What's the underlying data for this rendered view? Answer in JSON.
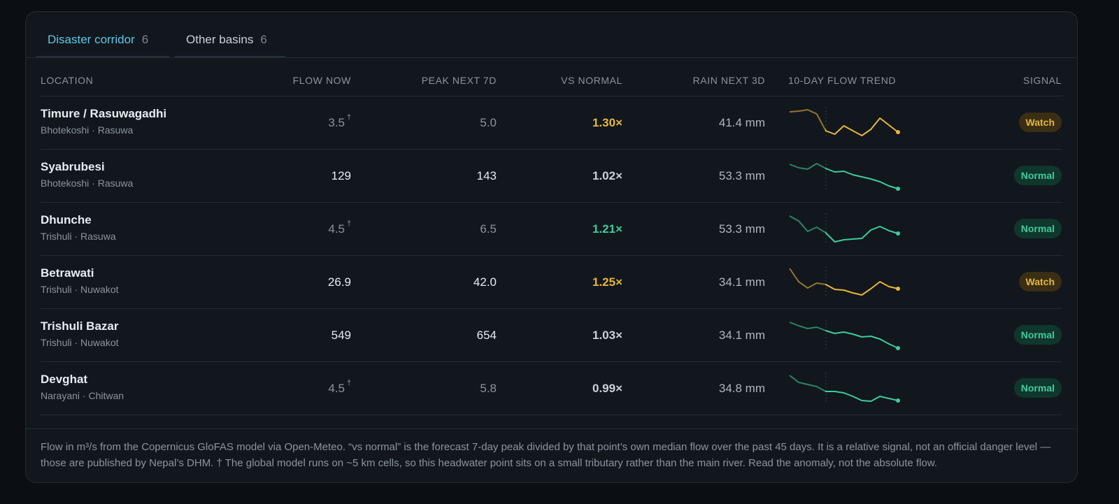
{
  "tabs": [
    {
      "label": "Disaster corridor",
      "count": 6
    },
    {
      "label": "Other basins",
      "count": 6
    }
  ],
  "columns": [
    "LOCATION",
    "FLOW NOW",
    "PEAK NEXT 7D",
    "VS NORMAL",
    "RAIN NEXT 3D",
    "10-DAY FLOW TREND",
    "SIGNAL"
  ],
  "trend_ylim": [
    0,
    42
  ],
  "rows": [
    {
      "name": "Timure / Rasuwagadhi",
      "sub": "Bhotekoshi · Rasuwa",
      "flow": "3.5",
      "flow_note": "†",
      "peak": "5.0",
      "vs_normal": "1.30×",
      "vs_color": "#e8b53d",
      "rain": "41.4 mm",
      "signal": "Watch",
      "color": "#e8b53d",
      "trend": [
        36,
        37,
        39,
        33,
        9,
        4,
        16,
        9,
        2,
        11,
        27,
        17,
        7
      ]
    },
    {
      "name": "Syabrubesi",
      "sub": "Bhotekoshi · Rasuwa",
      "flow": "129",
      "peak": "143",
      "vs_normal": "1.02×",
      "vs_color": "#c9d1d9",
      "rain": "53.3 mm",
      "signal": "Normal",
      "color": "#3ecb9c",
      "trend": [
        37,
        32,
        30,
        38,
        31,
        26,
        27,
        22,
        19,
        16,
        12,
        6,
        2
      ]
    },
    {
      "name": "Dhunche",
      "sub": "Trishuli · Rasuwa",
      "flow": "4.5",
      "flow_note": "†",
      "peak": "6.5",
      "vs_normal": "1.21×",
      "vs_color": "#3ecb9c",
      "rain": "53.3 mm",
      "signal": "Normal",
      "color": "#3ecb9c",
      "trend": [
        39,
        32,
        17,
        23,
        15,
        2,
        5,
        6,
        7,
        19,
        24,
        18,
        14
      ]
    },
    {
      "name": "Betrawati",
      "sub": "Trishuli · Nuwakot",
      "flow": "26.9",
      "peak": "42.0",
      "vs_normal": "1.25×",
      "vs_color": "#e8b53d",
      "rain": "34.1 mm",
      "signal": "Watch",
      "color": "#e8b53d",
      "trend": [
        40,
        21,
        12,
        19,
        17,
        10,
        9,
        5,
        2,
        11,
        21,
        14,
        11
      ]
    },
    {
      "name": "Trishuli Bazar",
      "sub": "Trishuli · Nuwakot",
      "flow": "549",
      "peak": "654",
      "vs_normal": "1.03×",
      "vs_color": "#c9d1d9",
      "rain": "34.1 mm",
      "signal": "Normal",
      "color": "#3ecb9c",
      "trend": [
        39,
        34,
        30,
        32,
        27,
        23,
        25,
        22,
        18,
        19,
        15,
        8,
        2
      ]
    },
    {
      "name": "Devghat",
      "sub": "Narayani · Chitwan",
      "flow": "4.5",
      "flow_note": "†",
      "peak": "5.8",
      "vs_normal": "0.99×",
      "vs_color": "#c9d1d9",
      "rain": "34.8 mm",
      "signal": "Normal",
      "color": "#3ecb9c",
      "trend": [
        39,
        29,
        26,
        23,
        16,
        16,
        14,
        9,
        3,
        2,
        9,
        6,
        3
      ]
    }
  ],
  "footer": "Flow in m³/s from the Copernicus GloFAS model via Open-Meteo. “vs normal” is the forecast 7-day peak divided by that point’s own median flow over the past 45 days. It is a relative signal, not an official danger level — those are published by Nepal’s DHM. † The global model runs on ~5 km cells, so this headwater point sits on a small tributary rather than the main river. Read the anomaly, not the absolute flow."
}
